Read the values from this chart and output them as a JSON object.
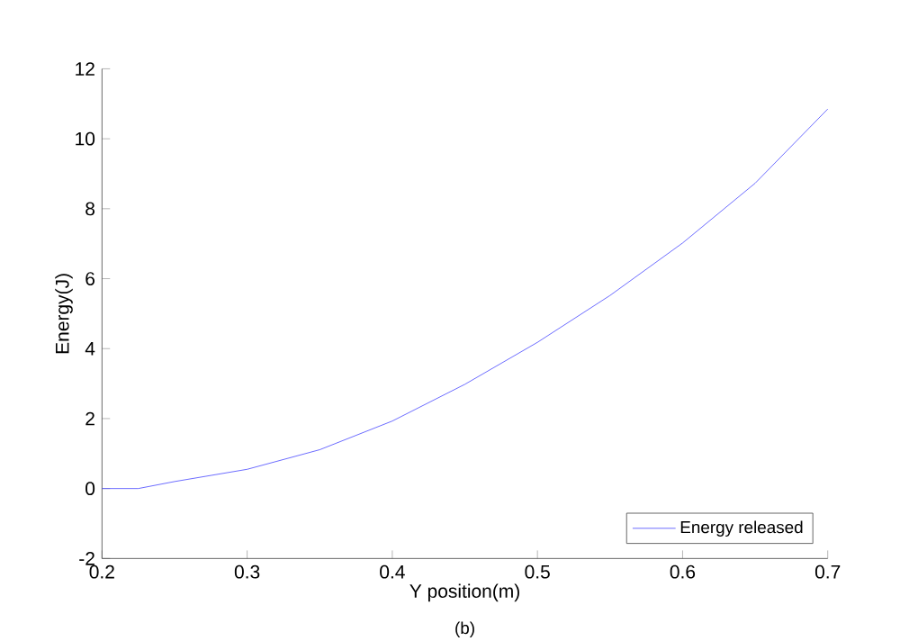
{
  "chart_data": {
    "type": "line",
    "xlabel": "Y position(m)",
    "ylabel": "Energy(J)",
    "annotations": [
      "(b)"
    ],
    "x": [
      0.2,
      0.225,
      0.25,
      0.3,
      0.35,
      0.4,
      0.45,
      0.5,
      0.55,
      0.6,
      0.65,
      0.7
    ],
    "series": [
      {
        "name": "Energy released",
        "color": "#5050ff",
        "values": [
          0,
          0,
          0.2,
          0.55,
          1.11,
          1.93,
          2.98,
          4.18,
          5.52,
          7.02,
          8.73,
          10.85
        ]
      }
    ],
    "xlim": [
      0.2,
      0.7
    ],
    "ylim": [
      -2,
      12
    ],
    "xticks": [
      0.2,
      0.3,
      0.4,
      0.5,
      0.6,
      0.7
    ],
    "yticks": [
      -2,
      0,
      2,
      4,
      6,
      8,
      10,
      12
    ],
    "legend": "bottom right",
    "grid": false,
    "marker": "none",
    "line_style": "solid"
  }
}
